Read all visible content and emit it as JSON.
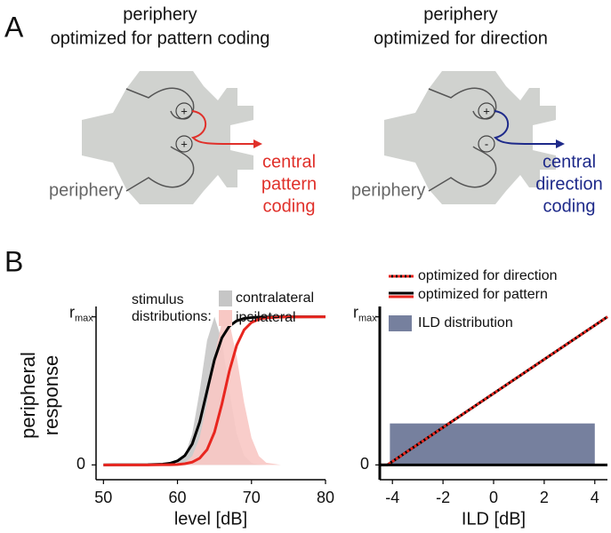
{
  "figure": {
    "panel_a": {
      "label": "A",
      "left": {
        "title": [
          "periphery",
          "optimized for pattern coding"
        ],
        "signs": [
          "+",
          "+"
        ],
        "periphery_label": "periphery",
        "central_label": [
          "central",
          "pattern",
          "coding"
        ],
        "color": "#e0302a"
      },
      "right": {
        "title": [
          "periphery",
          "optimized for direction"
        ],
        "signs": [
          "+",
          "-"
        ],
        "periphery_label": "periphery",
        "central_label": [
          "central",
          "direction",
          "coding"
        ],
        "color": "#1e2a8a"
      }
    },
    "panel_b": {
      "label": "B"
    }
  },
  "chart_data": [
    {
      "type": "line",
      "x_label": "level [dB]",
      "y_label": [
        "peripheral",
        "response"
      ],
      "legend_title": [
        "stimulus",
        "distributions:"
      ],
      "x": [
        50,
        56,
        58,
        59,
        60,
        61,
        62,
        63,
        64,
        65,
        66,
        67,
        68,
        69,
        70,
        71,
        72,
        74,
        80
      ],
      "series": [
        {
          "name": "contralateral",
          "color": "#c6c6c6",
          "fill": true,
          "values": [
            0,
            0,
            0,
            0.002,
            0.013,
            0.063,
            0.211,
            0.5,
            0.841,
            1,
            0.841,
            0.5,
            0.211,
            0.063,
            0.013,
            0.002,
            0,
            0,
            0
          ]
        },
        {
          "name": "ipsilateral",
          "color": "#f8c8c4",
          "fill": true,
          "values": [
            0,
            0,
            0,
            0,
            0.003,
            0.015,
            0.06,
            0.183,
            0.421,
            0.732,
            0.966,
            0.966,
            0.732,
            0.421,
            0.183,
            0.06,
            0.015,
            0,
            0
          ]
        },
        {
          "color": "#000000",
          "values": [
            0,
            0.001,
            0.005,
            0.011,
            0.027,
            0.063,
            0.142,
            0.289,
            0.5,
            0.711,
            0.858,
            0.937,
            0.973,
            0.989,
            0.995,
            0.998,
            0.999,
            1,
            1
          ]
        },
        {
          "color": "#e8261f",
          "values": [
            0,
            0,
            0.001,
            0.001,
            0.003,
            0.008,
            0.019,
            0.045,
            0.103,
            0.221,
            0.411,
            0.632,
            0.808,
            0.912,
            0.962,
            0.984,
            0.993,
            0.999,
            1
          ]
        }
      ],
      "xlim": [
        49,
        80
      ],
      "xticks": [
        50,
        60,
        70,
        80
      ],
      "ylim": [
        -0.1,
        1.07
      ],
      "yticks": [
        0,
        {
          "value": 1,
          "label": "r",
          "subscript": "max"
        }
      ]
    },
    {
      "type": "line",
      "x_label": "ILD [dB]",
      "zero_line": true,
      "distribution": {
        "name": "ILD distribution",
        "color": "#76809e",
        "bins": [
          -4.1,
          4
        ],
        "values": [
          0.28
        ]
      },
      "x": [
        -4.5,
        -4.2,
        4.5
      ],
      "series": [
        {
          "name": "optimized for pattern",
          "color": "#000000",
          "values": [
            0,
            0,
            1
          ]
        },
        {
          "name": "optimized for direction",
          "color": "#e8261f",
          "dash": true,
          "values": [
            0,
            0,
            1
          ]
        }
      ],
      "xlim": [
        -4.5,
        4.5
      ],
      "xticks": [
        -4,
        -2,
        0,
        2,
        4
      ],
      "ylim": [
        -0.1,
        1.07
      ],
      "yticks": [
        0,
        {
          "value": 1,
          "label": "r",
          "subscript": "max"
        }
      ]
    }
  ]
}
